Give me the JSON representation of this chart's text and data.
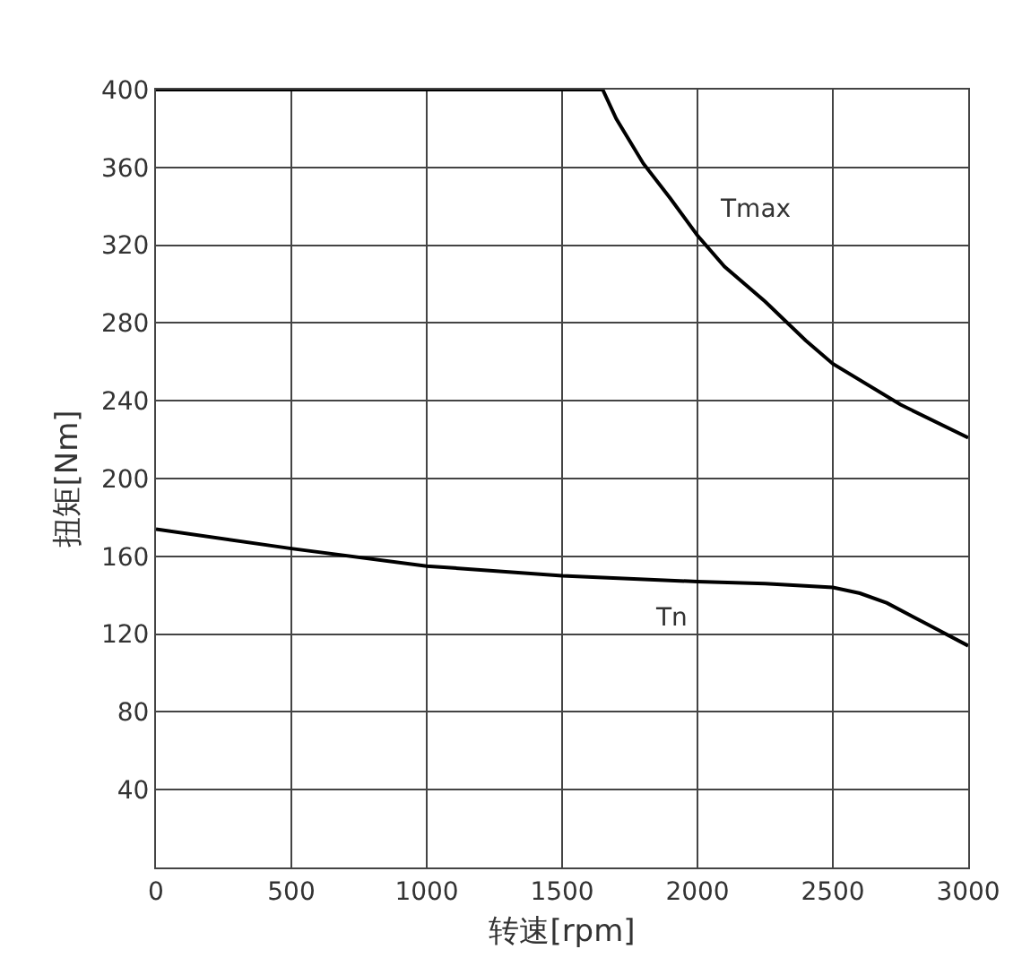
{
  "chart_data": {
    "type": "line",
    "xlabel": "转速[rpm]",
    "ylabel": "扭矩[Nm]",
    "xlim": [
      0,
      3000
    ],
    "xticks": [
      0,
      500,
      1000,
      1500,
      2000,
      2500,
      3000
    ],
    "ylim": [
      0,
      400
    ],
    "yticks": [
      40,
      80,
      120,
      160,
      200,
      240,
      280,
      320,
      360,
      400
    ],
    "grid": true,
    "marker": "none",
    "line_style": "solid",
    "legend": false,
    "series": [
      {
        "name": "Tmax",
        "color": "#000000",
        "x": [
          0,
          500,
          1000,
          1500,
          1650,
          1700,
          1800,
          1900,
          2000,
          2100,
          2250,
          2400,
          2500,
          2750,
          3000
        ],
        "values": [
          400,
          400,
          400,
          400,
          400,
          385,
          362,
          344,
          325,
          309,
          291,
          271,
          259,
          238,
          221
        ]
      },
      {
        "name": "Tn",
        "color": "#000000",
        "x": [
          0,
          500,
          1000,
          1500,
          2000,
          2250,
          2500,
          2600,
          2700,
          2850,
          3000
        ],
        "values": [
          174,
          164,
          155,
          150,
          147,
          146,
          144,
          141,
          136,
          125,
          114
        ]
      }
    ]
  }
}
